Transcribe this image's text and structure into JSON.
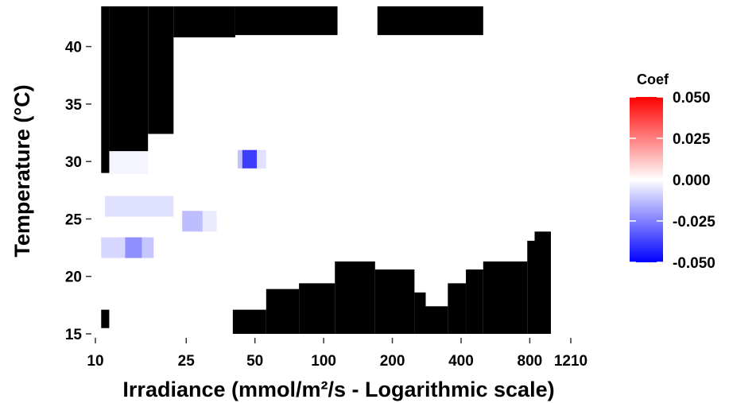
{
  "chart_data": {
    "type": "heatmap",
    "title": "",
    "xlabel": "Irradiance (mmol/m²/s - Logarithmic scale)",
    "ylabel": "Temperature (°C)",
    "x_scale": "log",
    "xlim": [
      10,
      1210
    ],
    "ylim": [
      15,
      43.5
    ],
    "x_ticks": [
      10,
      25,
      50,
      100,
      200,
      400,
      800,
      1210
    ],
    "x_tick_labels": [
      "10",
      "25",
      "50",
      "100",
      "200",
      "400",
      "800",
      "1210"
    ],
    "y_ticks": [
      15,
      20,
      25,
      30,
      35,
      40
    ],
    "y_tick_labels": [
      "15",
      "20",
      "25",
      "30",
      "35",
      "40"
    ],
    "grid": false,
    "legend": {
      "title": "Coef",
      "position": "right",
      "range": [
        -0.05,
        0.05
      ],
      "ticks": [
        0.05,
        0.025,
        0.0,
        -0.025,
        -0.05
      ],
      "tick_labels": [
        "0.050",
        "0.025",
        "0.000",
        "-0.025",
        "-0.050"
      ],
      "colors": {
        "high": "#ff0000",
        "mid": "#ffffff",
        "low": "#0000ff"
      }
    },
    "masked_color": "#000000",
    "masked_regions": [
      {
        "x0": 10.6,
        "x1": 11.5,
        "y0": 15.5,
        "y1": 17.1
      },
      {
        "x0": 10.6,
        "x1": 11.5,
        "y0": 29.0,
        "y1": 43.5
      },
      {
        "x0": 11.5,
        "x1": 17.0,
        "y0": 30.9,
        "y1": 43.5
      },
      {
        "x0": 17.0,
        "x1": 22.0,
        "y0": 32.4,
        "y1": 43.5
      },
      {
        "x0": 22.0,
        "x1": 41.0,
        "y0": 40.8,
        "y1": 43.5
      },
      {
        "x0": 41.0,
        "x1": 115.0,
        "y0": 41.0,
        "y1": 43.5
      },
      {
        "x0": 172.0,
        "x1": 500.0,
        "y0": 41.0,
        "y1": 43.5
      },
      {
        "x0": 40.0,
        "x1": 56.0,
        "y0": 15.0,
        "y1": 17.1
      },
      {
        "x0": 56.0,
        "x1": 78.0,
        "y0": 15.0,
        "y1": 18.9
      },
      {
        "x0": 78.0,
        "x1": 112.0,
        "y0": 15.0,
        "y1": 19.4
      },
      {
        "x0": 112.0,
        "x1": 168.0,
        "y0": 15.0,
        "y1": 21.3
      },
      {
        "x0": 168.0,
        "x1": 250.0,
        "y0": 15.0,
        "y1": 20.6
      },
      {
        "x0": 250.0,
        "x1": 280.0,
        "y0": 15.0,
        "y1": 18.6
      },
      {
        "x0": 280.0,
        "x1": 350.0,
        "y0": 15.0,
        "y1": 17.4
      },
      {
        "x0": 350.0,
        "x1": 420.0,
        "y0": 15.0,
        "y1": 19.4
      },
      {
        "x0": 420.0,
        "x1": 500.0,
        "y0": 15.0,
        "y1": 20.6
      },
      {
        "x0": 500.0,
        "x1": 780.0,
        "y0": 15.0,
        "y1": 21.3
      },
      {
        "x0": 780.0,
        "x1": 840.0,
        "y0": 15.0,
        "y1": 23.1
      },
      {
        "x0": 840.0,
        "x1": 990.0,
        "y0": 15.0,
        "y1": 23.9
      }
    ],
    "cells": [
      {
        "x0": 10.6,
        "x1": 990.0,
        "y0": 17.1,
        "y1": 41.0,
        "value": 0.0
      },
      {
        "x0": 10.6,
        "x1": 13.5,
        "y0": 21.6,
        "y1": 23.4,
        "value": -0.008
      },
      {
        "x0": 13.5,
        "x1": 16.0,
        "y0": 21.6,
        "y1": 23.4,
        "value": -0.022
      },
      {
        "x0": 16.0,
        "x1": 18.0,
        "y0": 21.6,
        "y1": 23.4,
        "value": -0.011
      },
      {
        "x0": 11.0,
        "x1": 22.0,
        "y0": 25.2,
        "y1": 27.0,
        "value": -0.006
      },
      {
        "x0": 24.0,
        "x1": 29.5,
        "y0": 23.9,
        "y1": 25.7,
        "value": -0.013
      },
      {
        "x0": 29.5,
        "x1": 34.0,
        "y0": 23.9,
        "y1": 25.7,
        "value": -0.004
      },
      {
        "x0": 42.0,
        "x1": 44.0,
        "y0": 29.4,
        "y1": 31.0,
        "value": -0.012
      },
      {
        "x0": 44.0,
        "x1": 51.0,
        "y0": 29.4,
        "y1": 31.0,
        "value": -0.038
      },
      {
        "x0": 51.0,
        "x1": 56.0,
        "y0": 29.4,
        "y1": 31.0,
        "value": -0.006
      },
      {
        "x0": 11.5,
        "x1": 17.0,
        "y0": 28.9,
        "y1": 30.9,
        "value": -0.002
      }
    ]
  }
}
